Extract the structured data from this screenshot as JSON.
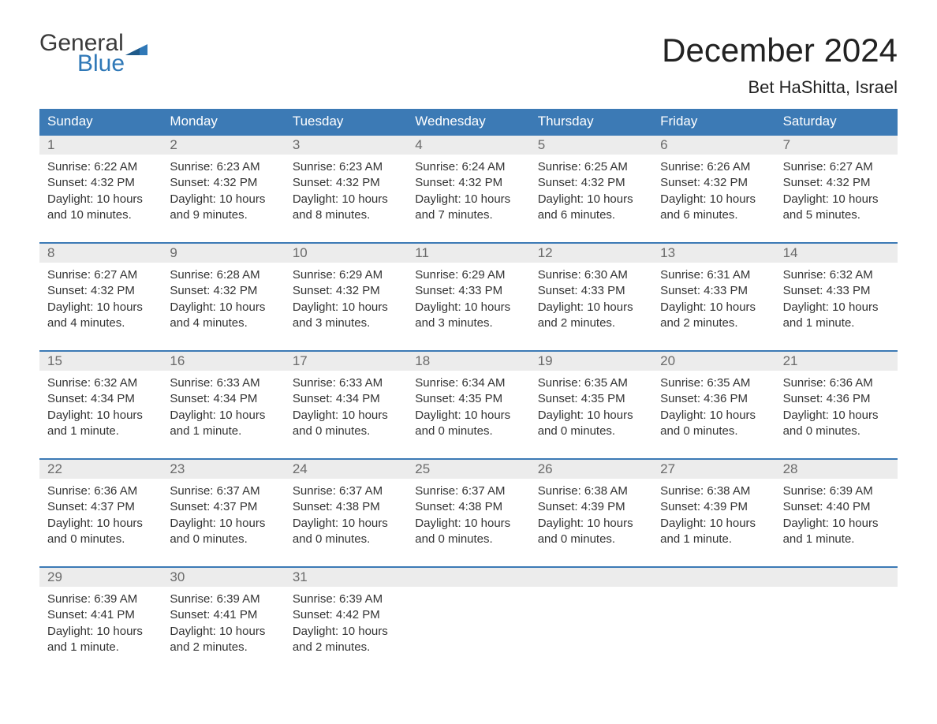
{
  "logo": {
    "word1": "General",
    "word2": "Blue",
    "text_color": "#3a3a3a",
    "accent_color": "#2f78b7"
  },
  "title": "December 2024",
  "location": "Bet HaShitta, Israel",
  "colors": {
    "header_bg": "#3c7ab5",
    "header_text": "#ffffff",
    "daynum_bg": "#ececec",
    "daynum_text": "#6a6a6a",
    "body_text": "#333333",
    "week_border": "#3c7ab5",
    "page_bg": "#ffffff"
  },
  "day_names": [
    "Sunday",
    "Monday",
    "Tuesday",
    "Wednesday",
    "Thursday",
    "Friday",
    "Saturday"
  ],
  "weeks": [
    [
      {
        "n": "1",
        "sunrise": "Sunrise: 6:22 AM",
        "sunset": "Sunset: 4:32 PM",
        "d1": "Daylight: 10 hours",
        "d2": "and 10 minutes."
      },
      {
        "n": "2",
        "sunrise": "Sunrise: 6:23 AM",
        "sunset": "Sunset: 4:32 PM",
        "d1": "Daylight: 10 hours",
        "d2": "and 9 minutes."
      },
      {
        "n": "3",
        "sunrise": "Sunrise: 6:23 AM",
        "sunset": "Sunset: 4:32 PM",
        "d1": "Daylight: 10 hours",
        "d2": "and 8 minutes."
      },
      {
        "n": "4",
        "sunrise": "Sunrise: 6:24 AM",
        "sunset": "Sunset: 4:32 PM",
        "d1": "Daylight: 10 hours",
        "d2": "and 7 minutes."
      },
      {
        "n": "5",
        "sunrise": "Sunrise: 6:25 AM",
        "sunset": "Sunset: 4:32 PM",
        "d1": "Daylight: 10 hours",
        "d2": "and 6 minutes."
      },
      {
        "n": "6",
        "sunrise": "Sunrise: 6:26 AM",
        "sunset": "Sunset: 4:32 PM",
        "d1": "Daylight: 10 hours",
        "d2": "and 6 minutes."
      },
      {
        "n": "7",
        "sunrise": "Sunrise: 6:27 AM",
        "sunset": "Sunset: 4:32 PM",
        "d1": "Daylight: 10 hours",
        "d2": "and 5 minutes."
      }
    ],
    [
      {
        "n": "8",
        "sunrise": "Sunrise: 6:27 AM",
        "sunset": "Sunset: 4:32 PM",
        "d1": "Daylight: 10 hours",
        "d2": "and 4 minutes."
      },
      {
        "n": "9",
        "sunrise": "Sunrise: 6:28 AM",
        "sunset": "Sunset: 4:32 PM",
        "d1": "Daylight: 10 hours",
        "d2": "and 4 minutes."
      },
      {
        "n": "10",
        "sunrise": "Sunrise: 6:29 AM",
        "sunset": "Sunset: 4:32 PM",
        "d1": "Daylight: 10 hours",
        "d2": "and 3 minutes."
      },
      {
        "n": "11",
        "sunrise": "Sunrise: 6:29 AM",
        "sunset": "Sunset: 4:33 PM",
        "d1": "Daylight: 10 hours",
        "d2": "and 3 minutes."
      },
      {
        "n": "12",
        "sunrise": "Sunrise: 6:30 AM",
        "sunset": "Sunset: 4:33 PM",
        "d1": "Daylight: 10 hours",
        "d2": "and 2 minutes."
      },
      {
        "n": "13",
        "sunrise": "Sunrise: 6:31 AM",
        "sunset": "Sunset: 4:33 PM",
        "d1": "Daylight: 10 hours",
        "d2": "and 2 minutes."
      },
      {
        "n": "14",
        "sunrise": "Sunrise: 6:32 AM",
        "sunset": "Sunset: 4:33 PM",
        "d1": "Daylight: 10 hours",
        "d2": "and 1 minute."
      }
    ],
    [
      {
        "n": "15",
        "sunrise": "Sunrise: 6:32 AM",
        "sunset": "Sunset: 4:34 PM",
        "d1": "Daylight: 10 hours",
        "d2": "and 1 minute."
      },
      {
        "n": "16",
        "sunrise": "Sunrise: 6:33 AM",
        "sunset": "Sunset: 4:34 PM",
        "d1": "Daylight: 10 hours",
        "d2": "and 1 minute."
      },
      {
        "n": "17",
        "sunrise": "Sunrise: 6:33 AM",
        "sunset": "Sunset: 4:34 PM",
        "d1": "Daylight: 10 hours",
        "d2": "and 0 minutes."
      },
      {
        "n": "18",
        "sunrise": "Sunrise: 6:34 AM",
        "sunset": "Sunset: 4:35 PM",
        "d1": "Daylight: 10 hours",
        "d2": "and 0 minutes."
      },
      {
        "n": "19",
        "sunrise": "Sunrise: 6:35 AM",
        "sunset": "Sunset: 4:35 PM",
        "d1": "Daylight: 10 hours",
        "d2": "and 0 minutes."
      },
      {
        "n": "20",
        "sunrise": "Sunrise: 6:35 AM",
        "sunset": "Sunset: 4:36 PM",
        "d1": "Daylight: 10 hours",
        "d2": "and 0 minutes."
      },
      {
        "n": "21",
        "sunrise": "Sunrise: 6:36 AM",
        "sunset": "Sunset: 4:36 PM",
        "d1": "Daylight: 10 hours",
        "d2": "and 0 minutes."
      }
    ],
    [
      {
        "n": "22",
        "sunrise": "Sunrise: 6:36 AM",
        "sunset": "Sunset: 4:37 PM",
        "d1": "Daylight: 10 hours",
        "d2": "and 0 minutes."
      },
      {
        "n": "23",
        "sunrise": "Sunrise: 6:37 AM",
        "sunset": "Sunset: 4:37 PM",
        "d1": "Daylight: 10 hours",
        "d2": "and 0 minutes."
      },
      {
        "n": "24",
        "sunrise": "Sunrise: 6:37 AM",
        "sunset": "Sunset: 4:38 PM",
        "d1": "Daylight: 10 hours",
        "d2": "and 0 minutes."
      },
      {
        "n": "25",
        "sunrise": "Sunrise: 6:37 AM",
        "sunset": "Sunset: 4:38 PM",
        "d1": "Daylight: 10 hours",
        "d2": "and 0 minutes."
      },
      {
        "n": "26",
        "sunrise": "Sunrise: 6:38 AM",
        "sunset": "Sunset: 4:39 PM",
        "d1": "Daylight: 10 hours",
        "d2": "and 0 minutes."
      },
      {
        "n": "27",
        "sunrise": "Sunrise: 6:38 AM",
        "sunset": "Sunset: 4:39 PM",
        "d1": "Daylight: 10 hours",
        "d2": "and 1 minute."
      },
      {
        "n": "28",
        "sunrise": "Sunrise: 6:39 AM",
        "sunset": "Sunset: 4:40 PM",
        "d1": "Daylight: 10 hours",
        "d2": "and 1 minute."
      }
    ],
    [
      {
        "n": "29",
        "sunrise": "Sunrise: 6:39 AM",
        "sunset": "Sunset: 4:41 PM",
        "d1": "Daylight: 10 hours",
        "d2": "and 1 minute."
      },
      {
        "n": "30",
        "sunrise": "Sunrise: 6:39 AM",
        "sunset": "Sunset: 4:41 PM",
        "d1": "Daylight: 10 hours",
        "d2": "and 2 minutes."
      },
      {
        "n": "31",
        "sunrise": "Sunrise: 6:39 AM",
        "sunset": "Sunset: 4:42 PM",
        "d1": "Daylight: 10 hours",
        "d2": "and 2 minutes."
      },
      null,
      null,
      null,
      null
    ]
  ]
}
